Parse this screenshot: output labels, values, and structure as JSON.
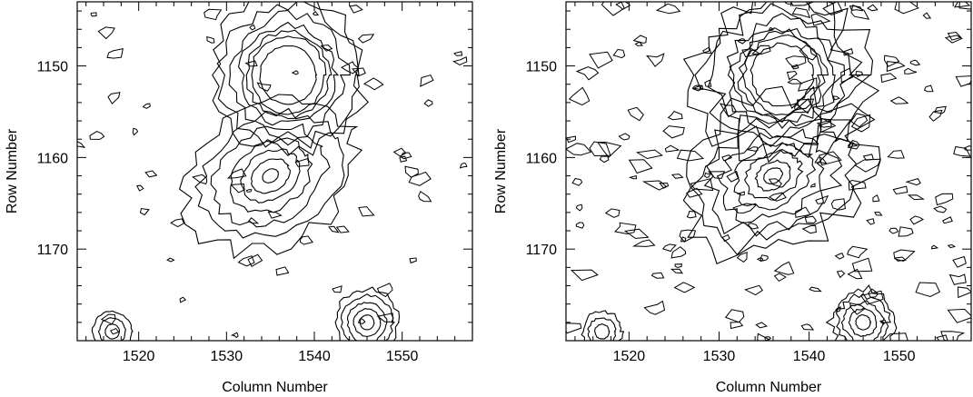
{
  "chart_data": [
    {
      "type": "contour",
      "xlabel": "Column Number",
      "ylabel": "Row Number",
      "xlim": [
        1513,
        1558
      ],
      "ylim": [
        1180,
        1143
      ],
      "xticks": [
        1520,
        1530,
        1540,
        1550
      ],
      "yticks": [
        1150,
        1160,
        1170
      ],
      "grid": false,
      "sources": [
        {
          "label": "",
          "x": 1537,
          "y": 1151,
          "contour_levels": 7,
          "radii": [
            3.2,
            4.2,
            4.7,
            5.4,
            6.5,
            7.6,
            8.6
          ]
        },
        {
          "label": "",
          "x": 1535,
          "y": 1162,
          "contour_levels": 7,
          "radii": [
            0.7,
            1.7,
            2.6,
            3.6,
            5.0,
            6.3,
            7.5
          ]
        },
        {
          "label": "",
          "x": 1546,
          "y": 1178,
          "contour_levels": 5,
          "radii": [
            0.8,
            1.5,
            2.2,
            2.9,
            3.6
          ]
        },
        {
          "label": "",
          "x": 1517,
          "y": 1179,
          "contour_levels": 3,
          "radii": [
            0.8,
            1.5,
            2.2
          ]
        }
      ]
    },
    {
      "type": "contour",
      "xlabel": "Column Number",
      "ylabel": "Row Number",
      "xlim": [
        1513,
        1558
      ],
      "ylim": [
        1180,
        1143
      ],
      "xticks": [
        1520,
        1530,
        1540,
        1550
      ],
      "yticks": [
        1150,
        1160,
        1170
      ],
      "grid": false,
      "sources": [
        {
          "label": "",
          "x": 1537,
          "y": 1151,
          "contour_levels": 8,
          "radii": [
            3.4,
            4.2,
            4.7,
            5.3,
            6.2,
            7.2,
            8.2,
            9.2
          ]
        },
        {
          "label": "",
          "x": 1536,
          "y": 1162,
          "contour_levels": 8,
          "radii": [
            0.8,
            1.5,
            2.4,
            3.3,
            4.4,
            5.6,
            6.8,
            8.0
          ]
        },
        {
          "label": "",
          "x": 1546,
          "y": 1178,
          "contour_levels": 5,
          "radii": [
            0.8,
            1.5,
            2.2,
            2.9,
            3.6
          ]
        },
        {
          "label": "",
          "x": 1517,
          "y": 1179,
          "contour_levels": 3,
          "radii": [
            0.8,
            1.5,
            2.2
          ]
        }
      ]
    }
  ]
}
